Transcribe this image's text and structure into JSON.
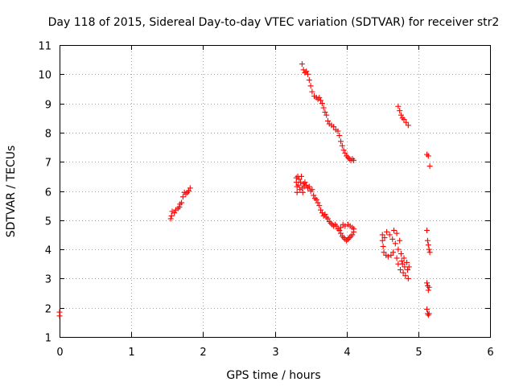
{
  "chart_data": {
    "type": "scatter",
    "title": "Day 118 of 2015, Sidereal Day-to-day VTEC variation (SDTVAR) for receiver str2",
    "xlabel": "GPS time / hours",
    "ylabel": "SDTVAR / TECUs",
    "xlim": [
      0,
      6
    ],
    "ylim": [
      1,
      11
    ],
    "xticks": [
      "0",
      "1",
      "2",
      "3",
      "4",
      "5",
      "6"
    ],
    "yticks": [
      "1",
      "2",
      "3",
      "4",
      "5",
      "6",
      "7",
      "8",
      "9",
      "10",
      "11"
    ],
    "grid": true,
    "marker": "+",
    "color": "#ff0000",
    "series": [
      {
        "name": "seg-a",
        "points": [
          [
            0.0,
            1.72
          ],
          [
            0.0,
            1.85
          ]
        ]
      },
      {
        "name": "seg-b",
        "points": [
          [
            1.55,
            5.05
          ],
          [
            1.56,
            5.15
          ],
          [
            1.57,
            5.3
          ],
          [
            1.6,
            5.25
          ],
          [
            1.62,
            5.35
          ],
          [
            1.65,
            5.4
          ],
          [
            1.67,
            5.45
          ],
          [
            1.68,
            5.55
          ],
          [
            1.7,
            5.6
          ],
          [
            1.72,
            5.8
          ],
          [
            1.74,
            5.95
          ],
          [
            1.76,
            5.9
          ],
          [
            1.78,
            5.95
          ],
          [
            1.8,
            6.0
          ],
          [
            1.82,
            6.1
          ]
        ]
      },
      {
        "name": "seg-c",
        "points": [
          [
            3.38,
            10.35
          ],
          [
            3.4,
            10.15
          ],
          [
            3.42,
            10.05
          ],
          [
            3.44,
            10.1
          ],
          [
            3.46,
            10.0
          ],
          [
            3.48,
            9.8
          ],
          [
            3.5,
            9.6
          ],
          [
            3.52,
            9.4
          ],
          [
            3.55,
            9.25
          ],
          [
            3.58,
            9.2
          ],
          [
            3.6,
            9.15
          ],
          [
            3.62,
            9.2
          ],
          [
            3.64,
            9.1
          ],
          [
            3.66,
            9.0
          ],
          [
            3.68,
            8.85
          ],
          [
            3.7,
            8.7
          ],
          [
            3.72,
            8.6
          ],
          [
            3.74,
            8.4
          ],
          [
            3.76,
            8.3
          ],
          [
            3.79,
            8.25
          ],
          [
            3.82,
            8.2
          ],
          [
            3.85,
            8.1
          ],
          [
            3.88,
            8.05
          ],
          [
            3.9,
            7.9
          ],
          [
            3.92,
            7.7
          ],
          [
            3.94,
            7.55
          ],
          [
            3.96,
            7.4
          ],
          [
            3.98,
            7.3
          ],
          [
            4.0,
            7.2
          ],
          [
            4.02,
            7.15
          ],
          [
            4.04,
            7.1
          ],
          [
            4.06,
            7.05
          ],
          [
            4.08,
            7.1
          ],
          [
            4.1,
            7.05
          ]
        ]
      },
      {
        "name": "seg-d",
        "points": [
          [
            3.3,
            6.45
          ],
          [
            3.3,
            6.3
          ],
          [
            3.31,
            6.15
          ],
          [
            3.31,
            5.95
          ],
          [
            3.32,
            6.5
          ],
          [
            3.33,
            6.2
          ],
          [
            3.34,
            6.4
          ],
          [
            3.35,
            6.05
          ],
          [
            3.36,
            6.3
          ],
          [
            3.37,
            6.5
          ],
          [
            3.38,
            6.1
          ],
          [
            3.39,
            5.95
          ],
          [
            3.4,
            6.25
          ],
          [
            3.41,
            6.15
          ],
          [
            3.42,
            6.3
          ],
          [
            3.44,
            6.2
          ],
          [
            3.46,
            6.1
          ],
          [
            3.48,
            6.15
          ],
          [
            3.5,
            6.0
          ],
          [
            3.52,
            6.05
          ],
          [
            3.54,
            5.85
          ],
          [
            3.56,
            5.75
          ],
          [
            3.58,
            5.7
          ],
          [
            3.6,
            5.6
          ],
          [
            3.62,
            5.5
          ],
          [
            3.64,
            5.35
          ],
          [
            3.66,
            5.25
          ],
          [
            3.68,
            5.15
          ],
          [
            3.7,
            5.2
          ],
          [
            3.72,
            5.1
          ],
          [
            3.74,
            5.05
          ],
          [
            3.76,
            4.95
          ],
          [
            3.78,
            4.9
          ],
          [
            3.8,
            4.85
          ],
          [
            3.82,
            4.8
          ],
          [
            3.84,
            4.85
          ],
          [
            3.86,
            4.8
          ],
          [
            3.88,
            4.7
          ],
          [
            3.9,
            4.65
          ],
          [
            3.92,
            4.55
          ],
          [
            3.94,
            4.45
          ],
          [
            3.96,
            4.4
          ],
          [
            3.98,
            4.35
          ],
          [
            4.0,
            4.3
          ],
          [
            4.02,
            4.35
          ],
          [
            4.04,
            4.4
          ],
          [
            4.06,
            4.45
          ],
          [
            4.08,
            4.5
          ],
          [
            4.1,
            4.6
          ],
          [
            4.1,
            4.7
          ],
          [
            4.08,
            4.75
          ],
          [
            4.05,
            4.8
          ],
          [
            4.02,
            4.85
          ],
          [
            3.98,
            4.8
          ],
          [
            3.95,
            4.85
          ],
          [
            3.92,
            4.75
          ]
        ]
      },
      {
        "name": "seg-e",
        "points": [
          [
            4.5,
            4.5
          ],
          [
            4.5,
            4.3
          ],
          [
            4.51,
            4.1
          ],
          [
            4.52,
            3.9
          ],
          [
            4.53,
            4.4
          ],
          [
            4.55,
            3.8
          ],
          [
            4.56,
            4.6
          ],
          [
            4.58,
            3.75
          ],
          [
            4.6,
            4.5
          ],
          [
            4.62,
            3.8
          ],
          [
            4.64,
            4.35
          ],
          [
            4.65,
            3.9
          ],
          [
            4.66,
            4.65
          ],
          [
            4.68,
            4.2
          ],
          [
            4.7,
            3.7
          ],
          [
            4.7,
            4.55
          ],
          [
            4.72,
            4.0
          ],
          [
            4.72,
            3.5
          ],
          [
            4.74,
            4.3
          ],
          [
            4.75,
            3.3
          ],
          [
            4.76,
            3.85
          ],
          [
            4.77,
            3.6
          ],
          [
            4.78,
            3.5
          ],
          [
            4.79,
            3.2
          ],
          [
            4.8,
            3.7
          ],
          [
            4.81,
            3.4
          ],
          [
            4.82,
            3.1
          ],
          [
            4.84,
            3.55
          ],
          [
            4.85,
            3.3
          ],
          [
            4.86,
            3.0
          ],
          [
            4.87,
            3.4
          ]
        ]
      },
      {
        "name": "seg-f",
        "points": [
          [
            4.72,
            8.9
          ],
          [
            4.74,
            8.75
          ],
          [
            4.76,
            8.6
          ],
          [
            4.78,
            8.5
          ],
          [
            4.8,
            8.45
          ],
          [
            4.83,
            8.35
          ],
          [
            4.86,
            8.25
          ]
        ]
      },
      {
        "name": "seg-g",
        "points": [
          [
            5.12,
            7.25
          ],
          [
            5.14,
            7.2
          ],
          [
            5.16,
            6.85
          ],
          [
            5.12,
            4.65
          ],
          [
            5.13,
            4.3
          ],
          [
            5.14,
            4.15
          ],
          [
            5.15,
            4.0
          ],
          [
            5.16,
            3.9
          ],
          [
            5.12,
            2.85
          ],
          [
            5.13,
            2.75
          ],
          [
            5.14,
            2.6
          ],
          [
            5.15,
            2.7
          ],
          [
            5.12,
            1.95
          ],
          [
            5.13,
            1.8
          ],
          [
            5.14,
            1.75
          ],
          [
            5.15,
            1.8
          ]
        ]
      }
    ]
  }
}
